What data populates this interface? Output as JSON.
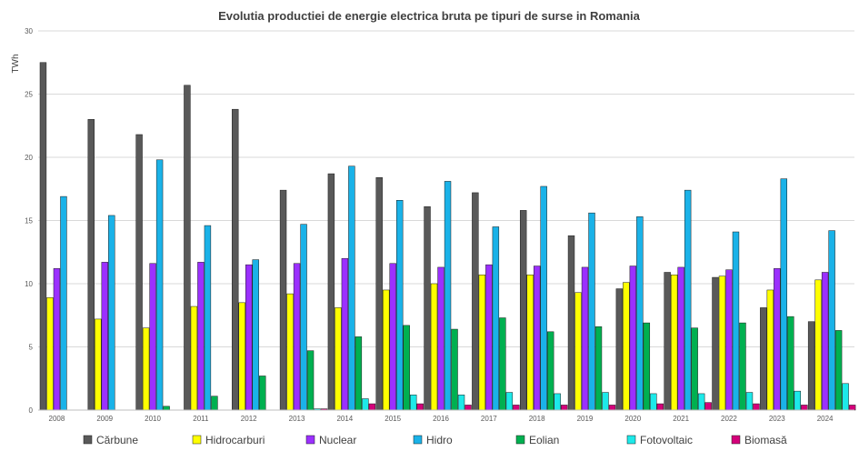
{
  "chart_data": {
    "type": "bar",
    "title": "Evolutia productiei de energie electrica bruta pe tipuri de surse in Romania",
    "ylabel": "TWh",
    "xlabel": "",
    "ylim": [
      0,
      30
    ],
    "yticks": [
      0,
      5,
      10,
      15,
      20,
      25,
      30
    ],
    "grid": true,
    "legend_position": "bottom",
    "categories": [
      "2008",
      "2009",
      "2010",
      "2011",
      "2012",
      "2013",
      "2014",
      "2015",
      "2016",
      "2017",
      "2018",
      "2019",
      "2020",
      "2021",
      "2022",
      "2023",
      "2024"
    ],
    "series": [
      {
        "name": "Cărbune",
        "color": "#595959",
        "values": [
          27.5,
          23.0,
          21.8,
          25.7,
          23.8,
          17.4,
          18.7,
          18.4,
          16.1,
          17.2,
          15.8,
          13.8,
          9.6,
          10.9,
          10.5,
          8.1,
          7.0
        ]
      },
      {
        "name": "Hidrocarburi",
        "color": "#ffff00",
        "values": [
          8.9,
          7.2,
          6.5,
          8.2,
          8.5,
          9.2,
          8.1,
          9.5,
          10.0,
          10.7,
          10.7,
          9.3,
          10.1,
          10.7,
          10.6,
          9.5,
          10.3
        ]
      },
      {
        "name": "Nuclear",
        "color": "#9b30ff",
        "values": [
          11.2,
          11.7,
          11.6,
          11.7,
          11.5,
          11.6,
          12.0,
          11.6,
          11.3,
          11.5,
          11.4,
          11.3,
          11.4,
          11.3,
          11.1,
          11.2,
          10.9
        ]
      },
      {
        "name": "Hidro",
        "color": "#1ab2e8",
        "values": [
          16.9,
          15.4,
          19.8,
          14.6,
          11.9,
          14.7,
          19.3,
          16.6,
          18.1,
          14.5,
          17.7,
          15.6,
          15.3,
          17.4,
          14.1,
          18.3,
          14.2
        ]
      },
      {
        "name": "Eolian",
        "color": "#00b050",
        "values": [
          0.0,
          0.0,
          0.3,
          1.1,
          2.7,
          4.7,
          5.8,
          6.7,
          6.4,
          7.3,
          6.2,
          6.6,
          6.9,
          6.5,
          6.9,
          7.4,
          6.3
        ]
      },
      {
        "name": "Fotovoltaic",
        "color": "#1de9e9",
        "values": [
          0.0,
          0.0,
          0.0,
          0.0,
          0.0,
          0.1,
          0.9,
          1.2,
          1.2,
          1.4,
          1.3,
          1.4,
          1.3,
          1.3,
          1.4,
          1.5,
          2.1
        ]
      },
      {
        "name": "Biomasă",
        "color": "#d4007a",
        "values": [
          0.0,
          0.0,
          0.0,
          0.0,
          0.0,
          0.1,
          0.5,
          0.5,
          0.4,
          0.4,
          0.4,
          0.4,
          0.5,
          0.6,
          0.5,
          0.4,
          0.4
        ]
      }
    ]
  }
}
